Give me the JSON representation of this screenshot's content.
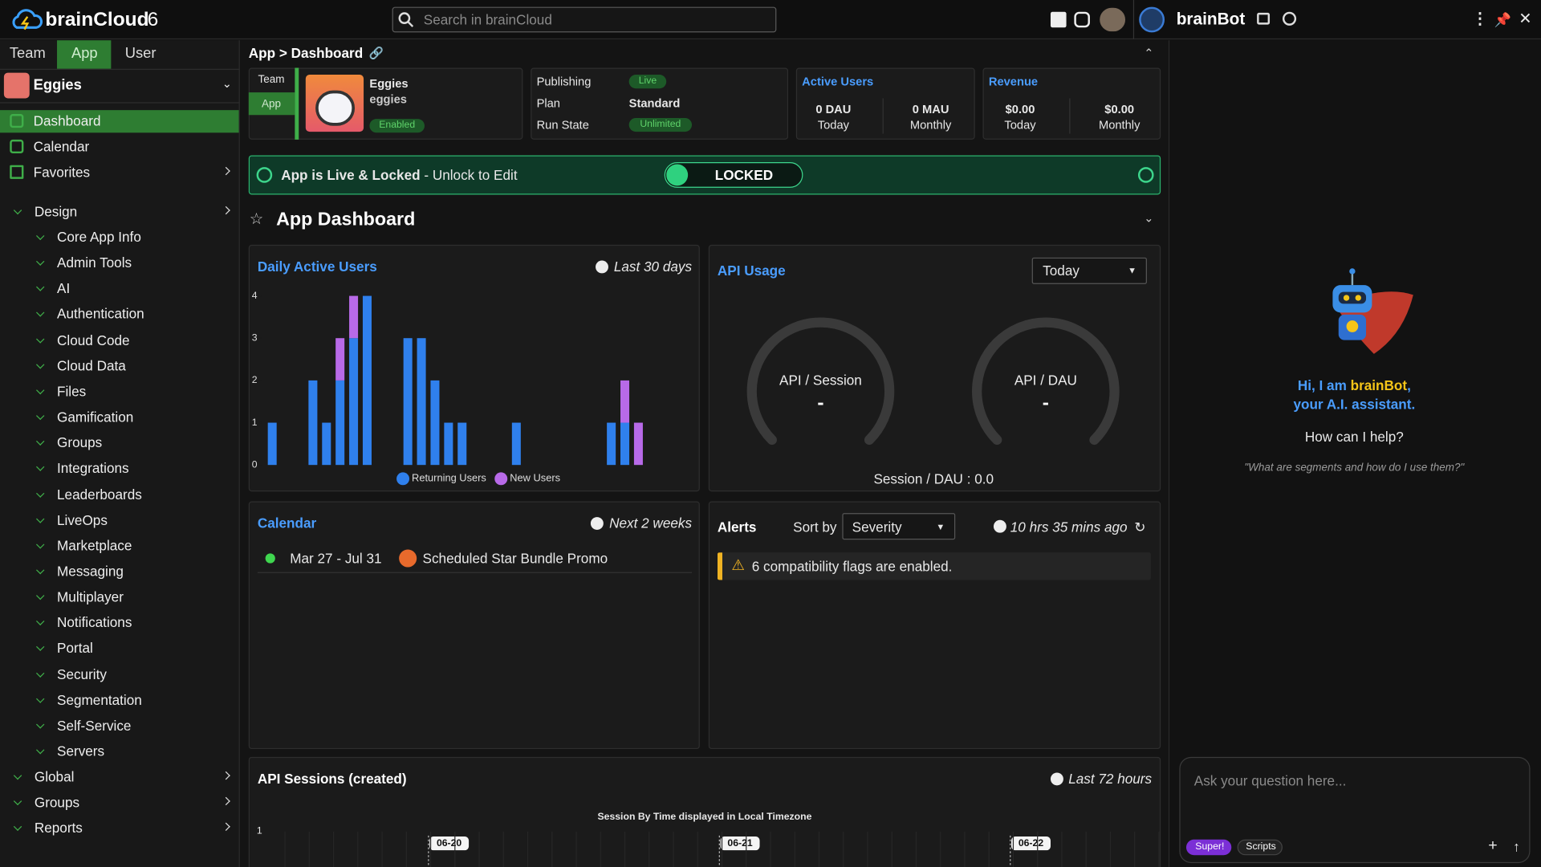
{
  "topbar": {
    "brand": "brainCloud",
    "brand_version": "6",
    "search_placeholder": "Search in brainCloud",
    "assistant_name": "brainBot"
  },
  "sidebar": {
    "tabs": [
      "Team",
      "App",
      "User"
    ],
    "app_name": "Eggies",
    "items": [
      "Dashboard",
      "Calendar",
      "Favorites"
    ],
    "design": {
      "label": "Design",
      "children": [
        "Core App Info",
        "Admin Tools",
        "AI",
        "Authentication",
        "Cloud Code",
        "Cloud Data",
        "Files",
        "Gamification",
        "Groups",
        "Integrations",
        "Leaderboards",
        "LiveOps",
        "Marketplace",
        "Messaging",
        "Multiplayer",
        "Notifications",
        "Portal",
        "Security",
        "Segmentation",
        "Self-Service",
        "Servers"
      ]
    },
    "sections": [
      "Global",
      "Groups",
      "Reports"
    ]
  },
  "header": {
    "breadcrumb": "App > Dashboard"
  },
  "app_card": {
    "tabs": [
      "Team",
      "App"
    ],
    "name": "Eggies",
    "id": "eggies",
    "status": "Enabled"
  },
  "publishing": {
    "rows": [
      [
        "Publishing",
        "Live"
      ],
      [
        "Plan",
        "Standard"
      ],
      [
        "Run State",
        "Unlimited"
      ]
    ]
  },
  "active_users": {
    "title": "Active Users",
    "stats": [
      {
        "value": "0 DAU",
        "label": "Today"
      },
      {
        "value": "0 MAU",
        "label": "Monthly"
      }
    ]
  },
  "revenue": {
    "title": "Revenue",
    "stats": [
      {
        "value": "$0.00",
        "label": "Today"
      },
      {
        "value": "$0.00",
        "label": "Monthly"
      }
    ]
  },
  "lock_banner": {
    "status": "App is Live & Locked",
    "hint": " - Unlock to Edit",
    "button": "LOCKED"
  },
  "dashboard_title": "App Dashboard",
  "chart_data": {
    "type": "bar",
    "stacked": true,
    "title": "Daily Active Users",
    "time_range": "Last 30 days",
    "series": [
      {
        "name": "Returning Users",
        "color": "#2f80ed",
        "values": [
          1,
          0,
          0,
          2,
          1,
          2,
          3,
          4,
          0,
          0,
          3,
          3,
          2,
          1,
          1,
          0,
          0,
          0,
          1,
          0,
          0,
          0,
          0,
          0,
          0,
          1,
          1,
          0,
          0,
          0
        ]
      },
      {
        "name": "New Users",
        "color": "#b86ae8",
        "values": [
          0,
          0,
          0,
          0,
          0,
          1,
          1,
          0,
          0,
          0,
          0,
          0,
          0,
          0,
          0,
          0,
          0,
          0,
          0,
          0,
          0,
          0,
          0,
          0,
          0,
          0,
          1,
          1,
          0,
          0
        ]
      }
    ],
    "ylim": [
      0,
      4
    ],
    "yticks": [
      0,
      1,
      2,
      3,
      4
    ],
    "legend": "bottom"
  },
  "api_usage": {
    "title": "API Usage",
    "period": "Today",
    "gauges": [
      {
        "label": "API / Session",
        "value": "-"
      },
      {
        "label": "API / DAU",
        "value": "-"
      }
    ],
    "ratio": "Session / DAU : 0.0"
  },
  "calendar": {
    "title": "Calendar",
    "range": "Next 2 weeks",
    "events": [
      {
        "dates": "Mar 27 - Jul 31",
        "name": "Scheduled Star Bundle Promo"
      }
    ]
  },
  "alerts": {
    "title": "Alerts",
    "sort_label": "Sort by",
    "sort_value": "Severity",
    "updated": "10 hrs 35 mins ago",
    "items": [
      "6 compatibility flags are enabled."
    ]
  },
  "sessions": {
    "title": "API Sessions (created)",
    "range": "Last 72 hours",
    "chart_title": "Session By Time displayed in Local Timezone",
    "ytick": "1",
    "dates": [
      "06-20",
      "06-21",
      "06-22"
    ]
  },
  "brainbot": {
    "greeting": "Hi, I am ",
    "name": "brainBot",
    "comma": ",",
    "tagline": "your A.I. assistant.",
    "question": "How can I help?",
    "example": "\"What are segments and how do I use them?\"",
    "input_placeholder": "Ask your question here...",
    "chips": [
      "Super!",
      "Scripts"
    ]
  }
}
